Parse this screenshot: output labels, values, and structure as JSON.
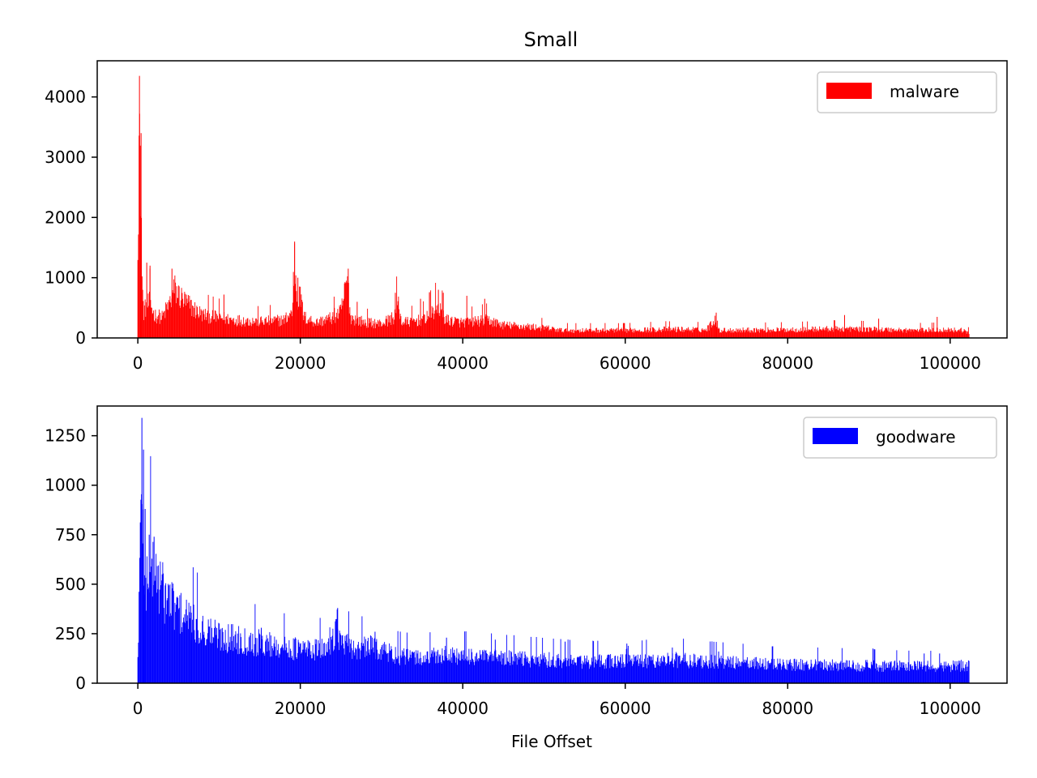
{
  "figure": {
    "title": "Small",
    "xlabel": "File Offset"
  },
  "chart_data": [
    {
      "type": "bar",
      "series": [
        {
          "name": "malware",
          "color": "#ff0000"
        }
      ],
      "xlim": [
        -5000,
        107000
      ],
      "ylim": [
        0,
        4600
      ],
      "xticks": [
        0,
        20000,
        40000,
        60000,
        80000,
        100000
      ],
      "xtick_labels": [
        "0",
        "20000",
        "40000",
        "60000",
        "80000",
        "100000"
      ],
      "yticks": [
        0,
        1000,
        2000,
        3000,
        4000
      ],
      "ytick_labels": [
        "0",
        "1000",
        "2000",
        "3000",
        "4000"
      ],
      "legend": "top-right",
      "grid": false,
      "bin_width": 100,
      "x_range": [
        0,
        102400
      ],
      "profile": [
        [
          0,
          2300
        ],
        [
          200,
          4350
        ],
        [
          300,
          2900
        ],
        [
          400,
          3400
        ],
        [
          500,
          1250
        ],
        [
          700,
          500
        ],
        [
          1000,
          600
        ],
        [
          1500,
          700
        ],
        [
          2000,
          450
        ],
        [
          3000,
          400
        ],
        [
          4000,
          700
        ],
        [
          4500,
          950
        ],
        [
          5500,
          750
        ],
        [
          7000,
          550
        ],
        [
          8000,
          450
        ],
        [
          10000,
          400
        ],
        [
          12000,
          350
        ],
        [
          15000,
          320
        ],
        [
          18000,
          350
        ],
        [
          19000,
          500
        ],
        [
          19300,
          1600
        ],
        [
          19600,
          800
        ],
        [
          20000,
          750
        ],
        [
          20500,
          400
        ],
        [
          22000,
          300
        ],
        [
          24000,
          400
        ],
        [
          25000,
          500
        ],
        [
          25800,
          1150
        ],
        [
          26200,
          400
        ],
        [
          28000,
          300
        ],
        [
          30000,
          280
        ],
        [
          31500,
          400
        ],
        [
          32000,
          700
        ],
        [
          32500,
          300
        ],
        [
          35000,
          350
        ],
        [
          37000,
          600
        ],
        [
          38000,
          350
        ],
        [
          40000,
          300
        ],
        [
          43000,
          350
        ],
        [
          45000,
          250
        ],
        [
          50000,
          200
        ],
        [
          52000,
          150
        ],
        [
          60000,
          150
        ],
        [
          65000,
          170
        ],
        [
          70000,
          160
        ],
        [
          71200,
          400
        ],
        [
          71500,
          150
        ],
        [
          80000,
          160
        ],
        [
          86000,
          180
        ],
        [
          90000,
          170
        ],
        [
          95000,
          150
        ],
        [
          100000,
          160
        ],
        [
          101500,
          150
        ],
        [
          102400,
          100
        ]
      ],
      "spikes": [
        [
          200,
          4350
        ],
        [
          400,
          3400
        ],
        [
          1100,
          1250
        ],
        [
          1500,
          1200
        ],
        [
          4200,
          1150
        ],
        [
          10600,
          720
        ],
        [
          19300,
          1600
        ],
        [
          19700,
          1000
        ],
        [
          20000,
          850
        ],
        [
          24200,
          500
        ],
        [
          25900,
          1150
        ],
        [
          27000,
          600
        ],
        [
          31700,
          750
        ],
        [
          34800,
          650
        ],
        [
          35900,
          750
        ],
        [
          37000,
          800
        ],
        [
          37600,
          750
        ],
        [
          40500,
          700
        ],
        [
          42700,
          650
        ],
        [
          71200,
          420
        ],
        [
          87000,
          380
        ],
        [
          91200,
          320
        ],
        [
          98400,
          350
        ]
      ]
    },
    {
      "type": "bar",
      "series": [
        {
          "name": "goodware",
          "color": "#0000ff"
        }
      ],
      "xlim": [
        -5000,
        107000
      ],
      "ylim": [
        0,
        1400
      ],
      "xticks": [
        0,
        20000,
        40000,
        60000,
        80000,
        100000
      ],
      "xtick_labels": [
        "0",
        "20000",
        "40000",
        "60000",
        "80000",
        "100000"
      ],
      "yticks": [
        0,
        250,
        500,
        750,
        1000,
        1250
      ],
      "ytick_labels": [
        "0",
        "250",
        "500",
        "750",
        "1000",
        "1250"
      ],
      "legend": "top-right",
      "grid": false,
      "bin_width": 100,
      "x_range": [
        0,
        102400
      ],
      "profile": [
        [
          0,
          150
        ],
        [
          200,
          600
        ],
        [
          400,
          1000
        ],
        [
          500,
          1340
        ],
        [
          700,
          800
        ],
        [
          900,
          450
        ],
        [
          1100,
          650
        ],
        [
          1500,
          700
        ],
        [
          2000,
          680
        ],
        [
          3000,
          550
        ],
        [
          4000,
          480
        ],
        [
          6000,
          380
        ],
        [
          8000,
          320
        ],
        [
          10000,
          280
        ],
        [
          15000,
          240
        ],
        [
          20000,
          200
        ],
        [
          23000,
          200
        ],
        [
          24000,
          280
        ],
        [
          24500,
          350
        ],
        [
          25000,
          240
        ],
        [
          27000,
          200
        ],
        [
          29000,
          220
        ],
        [
          32000,
          160
        ],
        [
          35000,
          150
        ],
        [
          38000,
          170
        ],
        [
          40000,
          160
        ],
        [
          45000,
          150
        ],
        [
          50000,
          140
        ],
        [
          55000,
          130
        ],
        [
          60000,
          130
        ],
        [
          60200,
          180
        ],
        [
          61000,
          130
        ],
        [
          66000,
          140
        ],
        [
          70000,
          130
        ],
        [
          75000,
          120
        ],
        [
          80000,
          110
        ],
        [
          85000,
          110
        ],
        [
          90000,
          105
        ],
        [
          95000,
          100
        ],
        [
          100000,
          100
        ],
        [
          102400,
          110
        ]
      ],
      "spikes": [
        [
          500,
          1340
        ],
        [
          700,
          1180
        ],
        [
          900,
          880
        ],
        [
          1400,
          750
        ],
        [
          2000,
          740
        ],
        [
          6500,
          390
        ],
        [
          15200,
          280
        ],
        [
          24600,
          380
        ],
        [
          29200,
          260
        ],
        [
          38000,
          230
        ],
        [
          44000,
          220
        ],
        [
          52600,
          210
        ],
        [
          60200,
          200
        ],
        [
          65800,
          180
        ],
        [
          71500,
          160
        ],
        [
          90500,
          175
        ],
        [
          96800,
          150
        ],
        [
          98700,
          150
        ]
      ]
    }
  ]
}
